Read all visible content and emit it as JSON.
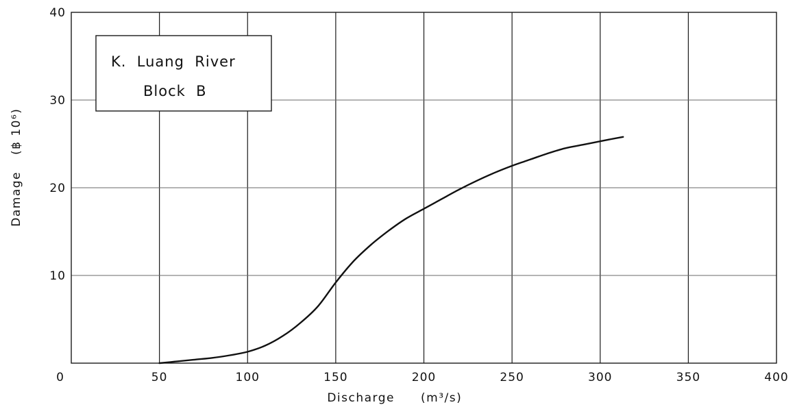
{
  "chart_data": {
    "type": "line",
    "title": "",
    "xlabel": "Discharge",
    "xunit": "(m³/s)",
    "ylabel": "Damage",
    "yunit": "(฿ 10⁶)",
    "xlim": [
      0,
      400
    ],
    "ylim": [
      0,
      40
    ],
    "x_ticks": [
      0,
      50,
      100,
      150,
      200,
      250,
      300,
      350,
      400
    ],
    "y_ticks": [
      10,
      20,
      30,
      40
    ],
    "grid": true,
    "legend": {
      "placement": "top-left",
      "line1": "K.  Luang  River",
      "line2": "Block  B"
    },
    "series": [
      {
        "x": [
          50,
          60,
          70,
          80,
          90,
          100,
          110,
          120,
          130,
          140,
          150,
          160,
          170,
          180,
          190,
          200,
          210,
          220,
          230,
          240,
          250,
          260,
          270,
          280,
          290,
          300,
          313
        ],
        "y": [
          0,
          0.2,
          0.4,
          0.6,
          0.9,
          1.3,
          2.0,
          3.1,
          4.6,
          6.5,
          9.2,
          11.6,
          13.5,
          15.1,
          16.5,
          17.6,
          18.7,
          19.8,
          20.8,
          21.7,
          22.5,
          23.2,
          23.9,
          24.5,
          24.9,
          25.3,
          25.8
        ]
      }
    ]
  }
}
